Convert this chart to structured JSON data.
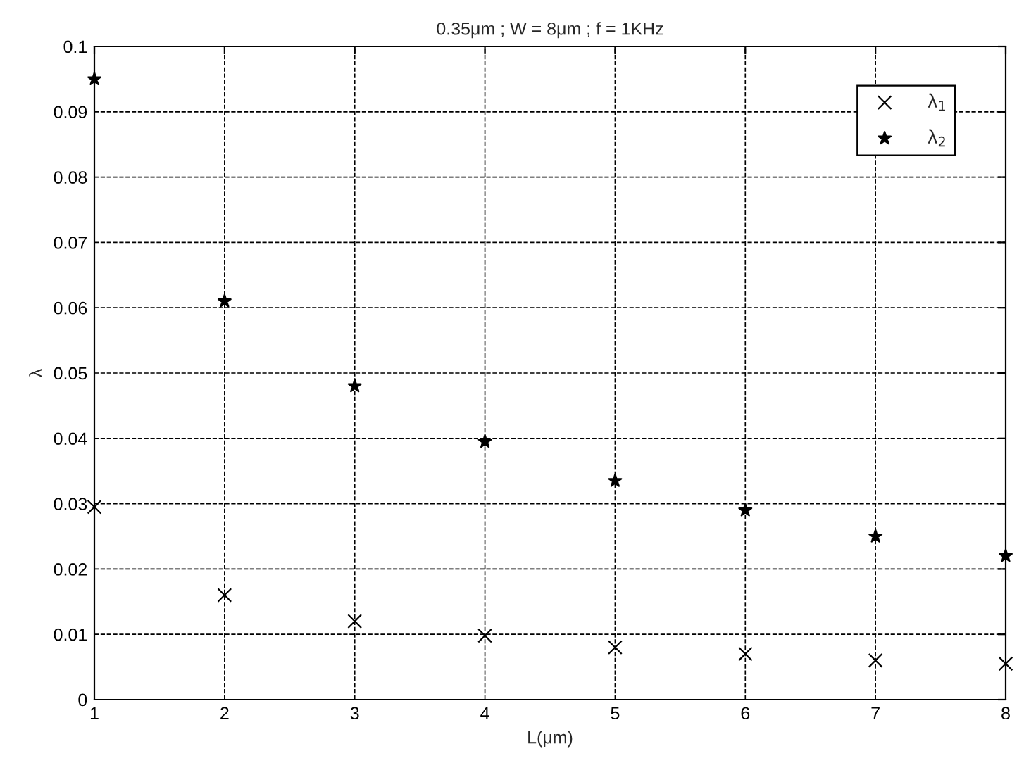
{
  "chart_data": {
    "type": "scatter",
    "title": "0.35μm ; W = 8μm ; f = 1KHz",
    "xlabel": "L(μm)",
    "ylabel": "λ",
    "x": [
      1,
      2,
      3,
      4,
      5,
      6,
      7,
      8
    ],
    "series": [
      {
        "name": "λ$_{1}$",
        "color": "#000000",
        "marker": "cross",
        "values": [
          0.0295,
          0.016,
          0.012,
          0.0098,
          0.008,
          0.007,
          0.006,
          0.0055
        ]
      },
      {
        "name": "λ$_{2}$",
        "color": "#000000",
        "marker": "star",
        "values": [
          0.095,
          0.061,
          0.048,
          0.0395,
          0.0335,
          0.029,
          0.025,
          0.022
        ]
      }
    ],
    "xlim": [
      1,
      8
    ],
    "xticks": [
      1,
      2,
      3,
      4,
      5,
      6,
      7,
      8
    ],
    "ylim": [
      0,
      0.1
    ],
    "yticks": [
      0,
      0.01,
      0.02,
      0.03,
      0.04,
      0.05,
      0.06,
      0.07,
      0.08,
      0.09,
      0.1
    ],
    "grid": true,
    "line_style": "dashed",
    "legend": "top right"
  }
}
